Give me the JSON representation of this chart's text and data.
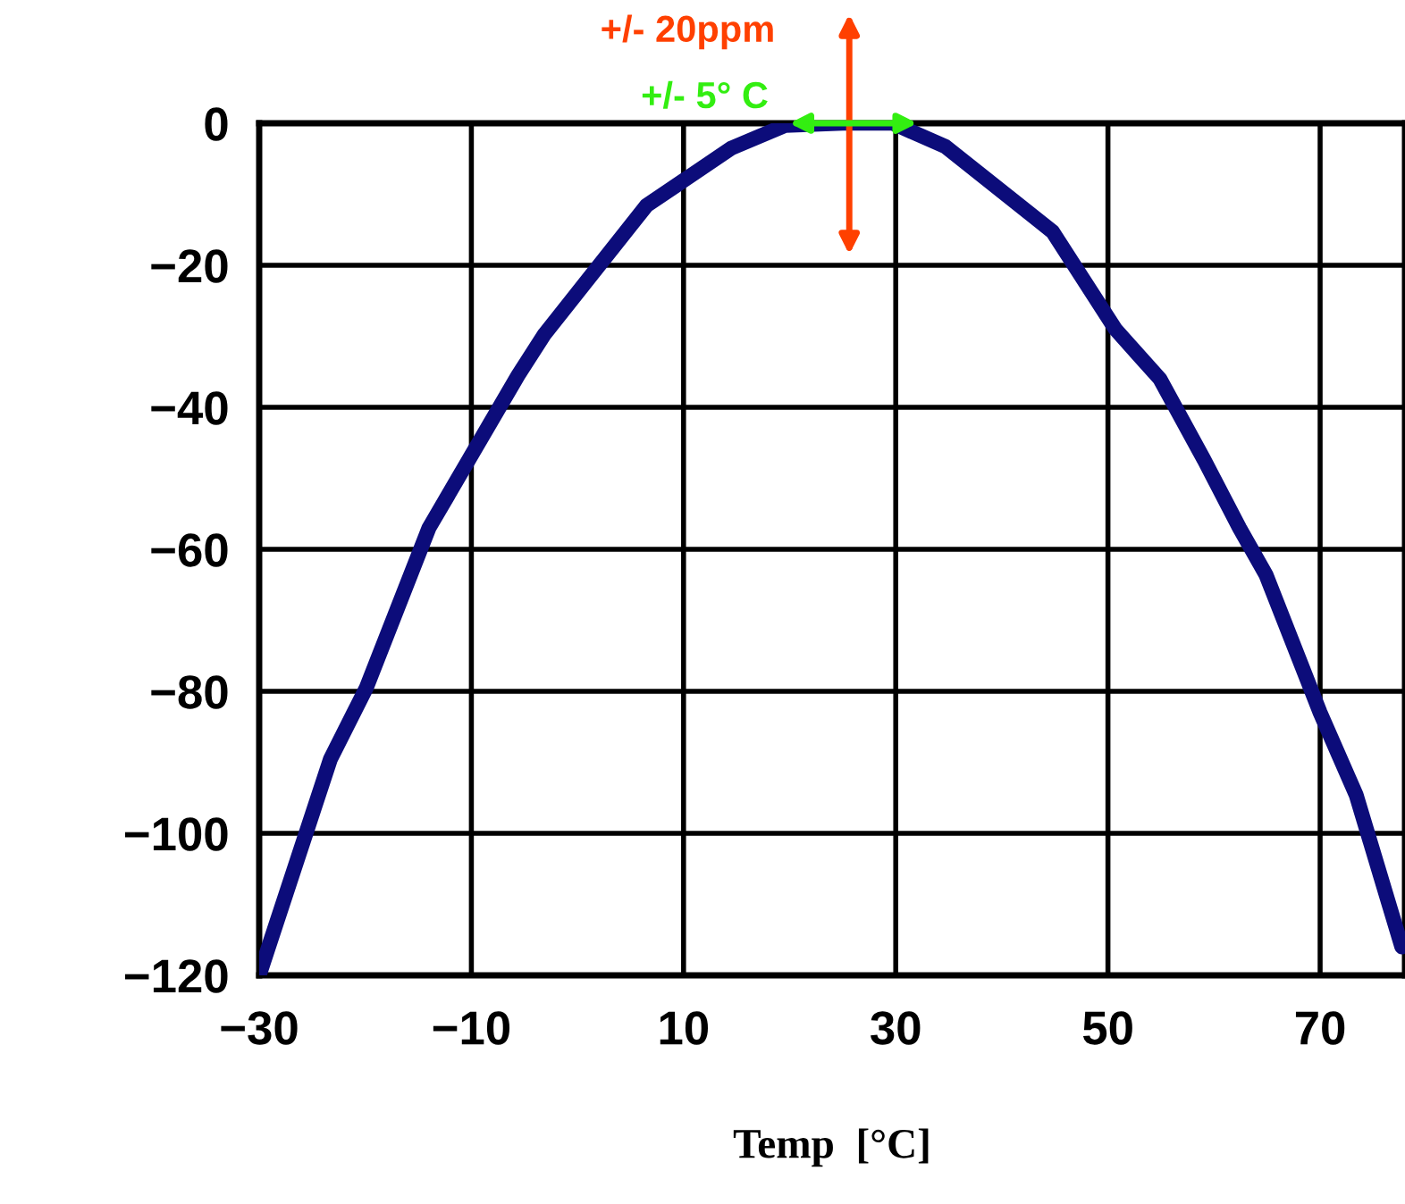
{
  "chart_data": {
    "type": "line",
    "xlabel": "Temp  [°C]",
    "x": [
      -30,
      -23.3,
      -19.9,
      -14,
      -5.6,
      -3.1,
      6.5,
      14.5,
      19.6,
      25,
      29.7,
      34.7,
      44.8,
      50.7,
      54.9,
      59.1,
      62.4,
      64.9,
      70,
      73.4,
      77.7
    ],
    "series": [
      {
        "color": "#0c0c7a",
        "values": [
          -120,
          -89.6,
          -79.5,
          -57,
          -35.5,
          -29.7,
          -11.6,
          -3.5,
          -0.3,
          0,
          0,
          -3.3,
          -15.3,
          -29,
          -36,
          -47.5,
          -57,
          -63.6,
          -83,
          -94.6,
          -116
        ]
      }
    ],
    "xlim": [
      -30,
      78
    ],
    "ylim": [
      -120,
      0
    ],
    "xticks": [
      {
        "value": -30,
        "label": "−30"
      },
      {
        "value": -10,
        "label": "−10"
      },
      10,
      30,
      50,
      70
    ],
    "yticks": [
      0,
      {
        "value": -20,
        "label": "−20"
      },
      {
        "value": -40,
        "label": "−40"
      },
      {
        "value": -60,
        "label": "−60"
      },
      {
        "value": -80,
        "label": "−80"
      },
      {
        "value": -100,
        "label": "−100"
      },
      {
        "value": -120,
        "label": "−120"
      }
    ],
    "grid": true,
    "marker": "none",
    "line_style": "solid",
    "annotations": [
      "+/- 20ppm",
      {
        "text": "+/- 5° C",
        "x": 26,
        "y": 0
      }
    ]
  }
}
